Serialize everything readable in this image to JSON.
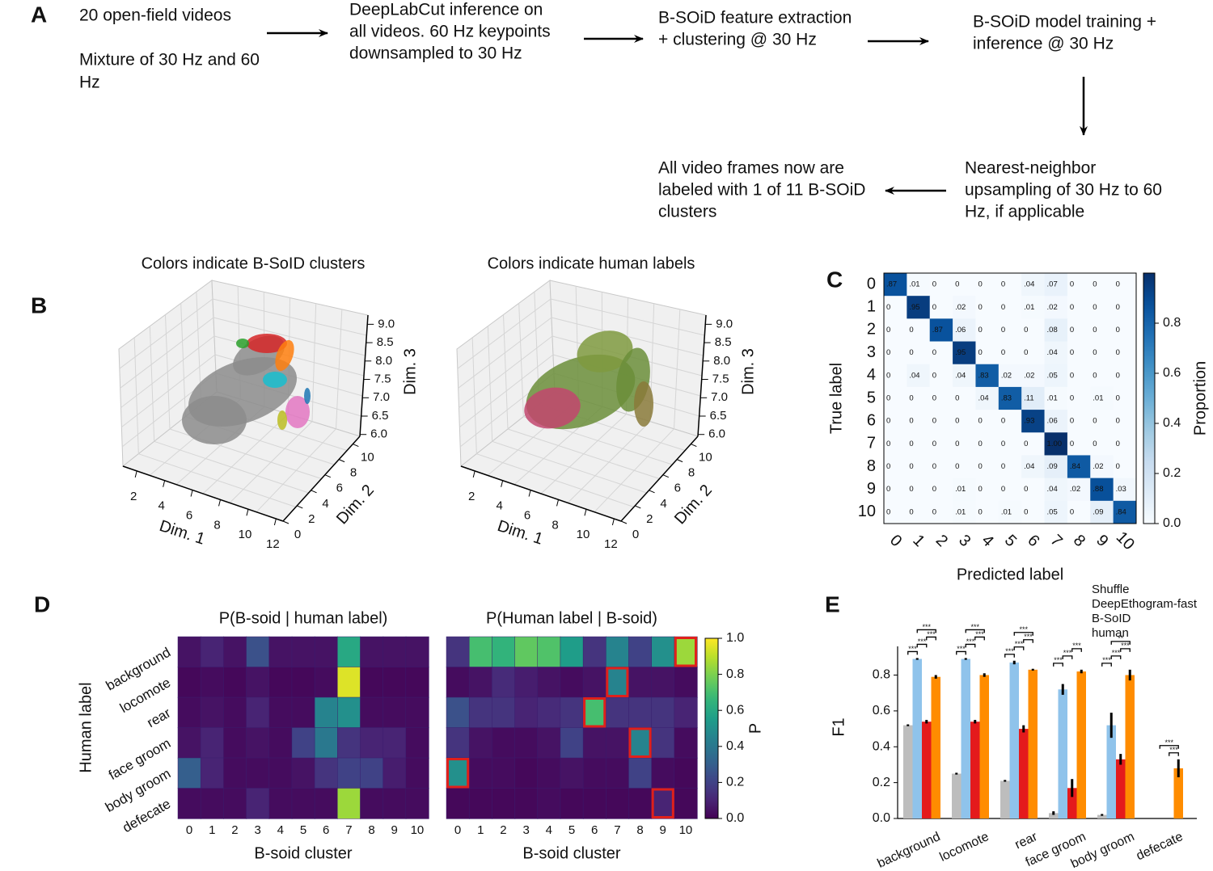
{
  "panel_labels": [
    "A",
    "B",
    "C",
    "D",
    "E"
  ],
  "flowchart": {
    "nodes": [
      {
        "lines": [
          "20 open-field videos",
          "Mixture of 30 Hz and 60",
          "Hz"
        ]
      },
      {
        "lines": [
          "DeepLabCut inference on",
          "all videos. 60 Hz keypoints",
          "downsampled to 30 Hz"
        ]
      },
      {
        "lines": [
          "B-SOiD feature extraction",
          "+ clustering @ 30 Hz"
        ]
      },
      {
        "lines": [
          "B-SOiD model training +",
          "inference @ 30 Hz"
        ]
      },
      {
        "lines": [
          "Nearest-neighbor",
          "upsampling of 30 Hz to 60",
          "Hz, if applicable"
        ]
      },
      {
        "lines": [
          "All video frames now are",
          "labeled with 1 of 11 B-SOiD",
          "clusters"
        ]
      }
    ]
  },
  "chart_data": [
    {
      "type": "scatter3d",
      "title": "Colors indicate B-SoID clusters",
      "xlabel": "Dim. 1",
      "ylabel": "Dim. 2",
      "zlabel": "Dim. 3",
      "xlim": [
        1,
        12.5
      ],
      "xticks": [
        2,
        4,
        6,
        8,
        10,
        12
      ],
      "ylim": [
        0,
        11
      ],
      "yticks": [
        0,
        2,
        4,
        6,
        8,
        10
      ],
      "zlim": [
        5.95,
        9.25
      ],
      "zticks": [
        {
          "value": 6,
          "label": "6.0"
        },
        {
          "value": 6.5,
          "label": "6.5"
        },
        {
          "value": 7,
          "label": "7.0"
        },
        {
          "value": 7.5,
          "label": "7.5"
        },
        {
          "value": 8,
          "label": "8.0"
        },
        {
          "value": 8.5,
          "label": "8.5"
        },
        {
          "value": 9,
          "label": "9.0"
        }
      ]
    },
    {
      "type": "scatter3d",
      "title": "Colors indicate human labels",
      "xlabel": "Dim. 1",
      "ylabel": "Dim. 2",
      "zlabel": "Dim. 3",
      "xlim": [
        1,
        12.5
      ],
      "xticks": [
        2,
        4,
        6,
        8,
        10,
        12
      ],
      "ylim": [
        0,
        11
      ],
      "yticks": [
        0,
        2,
        4,
        6,
        8,
        10
      ],
      "zlim": [
        5.95,
        9.25
      ],
      "zticks": [
        {
          "value": 6,
          "label": "6.0"
        },
        {
          "value": 6.5,
          "label": "6.5"
        },
        {
          "value": 7,
          "label": "7.0"
        },
        {
          "value": 7.5,
          "label": "7.5"
        },
        {
          "value": 8,
          "label": "8.0"
        },
        {
          "value": 8.5,
          "label": "8.5"
        },
        {
          "value": 9,
          "label": "9.0"
        }
      ]
    },
    {
      "type": "heatmap",
      "colormap": "blues",
      "xlabel": "Predicted label",
      "ylabel": "True label",
      "colorbar_label": "Proportion",
      "x": [
        "0",
        "1",
        "2",
        "3",
        "4",
        "5",
        "6",
        "7",
        "8",
        "9",
        "10"
      ],
      "y": [
        "0",
        "1",
        "2",
        "3",
        "4",
        "5",
        "6",
        "7",
        "8",
        "9",
        "10"
      ],
      "clim": [
        0,
        1
      ],
      "colorbar_ticks": [
        {
          "value": 0,
          "label": "0.0"
        },
        {
          "value": 0.2,
          "label": "0.2"
        },
        {
          "value": 0.4,
          "label": "0.4"
        },
        {
          "value": 0.6,
          "label": "0.6"
        },
        {
          "value": 0.8,
          "label": "0.8"
        }
      ],
      "values": [
        [
          0.87,
          0.01,
          0,
          0,
          0,
          0,
          0.04,
          0.07,
          0,
          0,
          0
        ],
        [
          0,
          0.95,
          0,
          0.02,
          0,
          0,
          0.01,
          0.02,
          0,
          0,
          0
        ],
        [
          0,
          0,
          0.87,
          0.06,
          0,
          0,
          0,
          0.08,
          0,
          0,
          0
        ],
        [
          0,
          0,
          0,
          0.95,
          0,
          0,
          0,
          0.04,
          0,
          0,
          0
        ],
        [
          0,
          0.04,
          0,
          0.04,
          0.83,
          0.02,
          0.02,
          0.05,
          0,
          0,
          0
        ],
        [
          0,
          0,
          0,
          0,
          0.04,
          0.83,
          0.11,
          0.01,
          0,
          0.01,
          0
        ],
        [
          0,
          0,
          0,
          0,
          0,
          0,
          0.93,
          0.06,
          0,
          0,
          0
        ],
        [
          0,
          0,
          0,
          0,
          0,
          0,
          0,
          1,
          0,
          0,
          0
        ],
        [
          0,
          0,
          0,
          0,
          0,
          0,
          0.04,
          0.09,
          0.84,
          0.02,
          0
        ],
        [
          0,
          0,
          0,
          0.01,
          0,
          0,
          0,
          0.04,
          0.02,
          0.88,
          0.03
        ],
        [
          0,
          0,
          0,
          0.01,
          0,
          0.01,
          0,
          0.05,
          0,
          0.09,
          0.84
        ]
      ],
      "value_labels": [
        [
          ".87",
          ".01",
          "0",
          "0",
          "0",
          "0",
          ".04",
          ".07",
          "0",
          "0",
          "0"
        ],
        [
          "0",
          ".95",
          "0",
          ".02",
          "0",
          "0",
          ".01",
          ".02",
          "0",
          "0",
          "0"
        ],
        [
          "0",
          "0",
          ".87",
          ".06",
          "0",
          "0",
          "0",
          ".08",
          "0",
          "0",
          "0"
        ],
        [
          "0",
          "0",
          "0",
          ".95",
          "0",
          "0",
          "0",
          ".04",
          "0",
          "0",
          "0"
        ],
        [
          "0",
          ".04",
          "0",
          ".04",
          ".83",
          ".02",
          ".02",
          ".05",
          "0",
          "0",
          "0"
        ],
        [
          "0",
          "0",
          "0",
          "0",
          ".04",
          ".83",
          ".11",
          ".01",
          "0",
          ".01",
          "0"
        ],
        [
          "0",
          "0",
          "0",
          "0",
          "0",
          "0",
          ".93",
          ".06",
          "0",
          "0",
          "0"
        ],
        [
          "0",
          "0",
          "0",
          "0",
          "0",
          "0",
          "0",
          "1.00",
          "0",
          "0",
          "0"
        ],
        [
          "0",
          "0",
          "0",
          "0",
          "0",
          "0",
          ".04",
          ".09",
          ".84",
          ".02",
          "0"
        ],
        [
          "0",
          "0",
          "0",
          ".01",
          "0",
          "0",
          "0",
          ".04",
          ".02",
          ".88",
          ".03"
        ],
        [
          "0",
          "0",
          "0",
          ".01",
          "0",
          ".01",
          "0",
          ".05",
          "0",
          ".09",
          ".84"
        ]
      ]
    },
    {
      "type": "heatmap",
      "colormap": "viridis",
      "title": "P(B-soid | human label)",
      "xlabel": "B-soid cluster",
      "ylabel": "Human label",
      "x": [
        "0",
        "1",
        "2",
        "3",
        "4",
        "5",
        "6",
        "7",
        "8",
        "9",
        "10"
      ],
      "y": [
        "background",
        "locomote",
        "rear",
        "face groom",
        "body groom",
        "defecate"
      ],
      "clim": [
        0,
        1
      ],
      "values": [
        [
          0.05,
          0.1,
          0.05,
          0.25,
          0.05,
          0.05,
          0.05,
          0.6,
          0.05,
          0.05,
          0.05
        ],
        [
          0.02,
          0.03,
          0.02,
          0.05,
          0.02,
          0.02,
          0.03,
          0.95,
          0.02,
          0.02,
          0.02
        ],
        [
          0.03,
          0.05,
          0.03,
          0.1,
          0.03,
          0.03,
          0.45,
          0.5,
          0.03,
          0.03,
          0.03
        ],
        [
          0.05,
          0.1,
          0.03,
          0.05,
          0.03,
          0.2,
          0.4,
          0.15,
          0.1,
          0.1,
          0.03
        ],
        [
          0.3,
          0.1,
          0.03,
          0.03,
          0.03,
          0.05,
          0.15,
          0.2,
          0.2,
          0.08,
          0.03
        ],
        [
          0.03,
          0.03,
          0.03,
          0.1,
          0.03,
          0.03,
          0.03,
          0.85,
          0.03,
          0.03,
          0.03
        ]
      ]
    },
    {
      "type": "heatmap",
      "colormap": "viridis",
      "title": "P(Human label | B-soid)",
      "xlabel": "B-soid cluster",
      "colorbar_label": "P",
      "x": [
        "0",
        "1",
        "2",
        "3",
        "4",
        "5",
        "6",
        "7",
        "8",
        "9",
        "10"
      ],
      "clim": [
        0,
        1
      ],
      "colorbar_ticks": [
        {
          "value": 0,
          "label": "0.0"
        },
        {
          "value": 0.2,
          "label": "0.2"
        },
        {
          "value": 0.4,
          "label": "0.4"
        },
        {
          "value": 0.6,
          "label": "0.6"
        },
        {
          "value": 0.8,
          "label": "0.8"
        },
        {
          "value": 1,
          "label": "1.0"
        }
      ],
      "values": [
        [
          0.15,
          0.7,
          0.65,
          0.75,
          0.72,
          0.55,
          0.15,
          0.45,
          0.2,
          0.5,
          0.85
        ],
        [
          0.03,
          0.05,
          0.12,
          0.08,
          0.05,
          0.03,
          0.05,
          0.45,
          0.05,
          0.05,
          0.03
        ],
        [
          0.25,
          0.15,
          0.15,
          0.1,
          0.12,
          0.15,
          0.7,
          0.15,
          0.15,
          0.15,
          0.1
        ],
        [
          0.15,
          0.05,
          0.03,
          0.03,
          0.05,
          0.2,
          0.05,
          0.05,
          0.45,
          0.15,
          0.03
        ],
        [
          0.5,
          0.03,
          0.03,
          0.02,
          0.03,
          0.05,
          0.03,
          0.03,
          0.2,
          0.03,
          0.02
        ],
        [
          0.02,
          0.02,
          0.02,
          0.02,
          0.03,
          0.02,
          0.02,
          0.02,
          0.02,
          0.1,
          0.02
        ]
      ],
      "highlight_cells": [
        [
          0,
          10
        ],
        [
          1,
          7
        ],
        [
          2,
          6
        ],
        [
          3,
          8
        ],
        [
          4,
          0
        ],
        [
          5,
          9
        ]
      ]
    },
    {
      "type": "bar",
      "ylabel": "F1",
      "categories": [
        "background",
        "locomote",
        "rear",
        "face groom",
        "body groom",
        "defecate"
      ],
      "ylim": [
        0,
        0.96
      ],
      "yticks": [
        {
          "value": 0,
          "label": "0.0"
        },
        {
          "value": 0.2,
          "label": "0.2"
        },
        {
          "value": 0.4,
          "label": "0.4"
        },
        {
          "value": 0.6,
          "label": "0.6"
        },
        {
          "value": 0.8,
          "label": "0.8"
        }
      ],
      "series": [
        {
          "name": "Shuffle",
          "color": "#bdbdbd",
          "values": [
            0.52,
            0.25,
            0.21,
            0.03,
            0.02,
            0
          ],
          "errors": [
            0.005,
            0.005,
            0.005,
            0.01,
            0.005,
            0
          ]
        },
        {
          "name": "DeepEthogram-fast",
          "color": "#8fc3eb",
          "values": [
            0.89,
            0.89,
            0.87,
            0.72,
            0.52,
            0
          ],
          "errors": [
            0.005,
            0.005,
            0.01,
            0.03,
            0.07,
            0
          ]
        },
        {
          "name": "B-SoID",
          "color": "#e41a1c",
          "values": [
            0.54,
            0.54,
            0.5,
            0.17,
            0.33,
            0
          ],
          "errors": [
            0.01,
            0.01,
            0.02,
            0.05,
            0.03,
            0
          ]
        },
        {
          "name": "human",
          "color": "#ff8c00",
          "values": [
            0.79,
            0.8,
            0.83,
            0.82,
            0.8,
            0.28
          ],
          "errors": [
            0.01,
            0.01,
            0.005,
            0.01,
            0.03,
            0.05
          ]
        }
      ],
      "significance": [
        [
          "***",
          "***",
          "***",
          "***"
        ],
        [
          "***",
          "***",
          "***",
          "***"
        ],
        [
          "***",
          "***",
          "***",
          "***"
        ],
        [
          "***",
          "***",
          "***"
        ],
        [
          "***",
          "***",
          "***",
          "**"
        ],
        [
          "***",
          "***"
        ]
      ]
    }
  ]
}
